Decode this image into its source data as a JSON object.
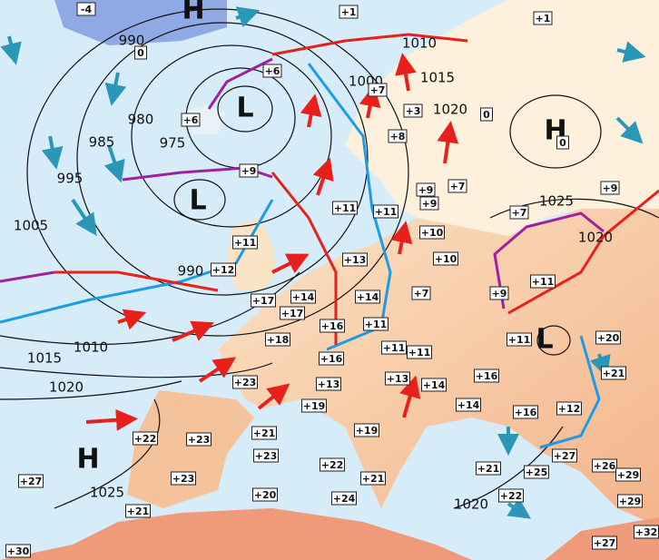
{
  "pressure_centers": [
    "H",
    "L",
    "L",
    "H",
    "L",
    "H"
  ],
  "isobar_labels": [
    "990",
    "1010",
    "1000",
    "1015",
    "1020",
    "980",
    "975",
    "985",
    "995",
    "1005",
    "1025",
    "1020",
    "990",
    "1010",
    "1015",
    "1020",
    "1025",
    "1020"
  ],
  "temperature_labels": [
    "-4",
    "+1",
    "+1",
    "0",
    "+6",
    "+7",
    "+3",
    "0",
    "+6",
    "0",
    "+8",
    "+9",
    "+9",
    "+7",
    "+9",
    "+9",
    "+7",
    "+11",
    "+11",
    "+11",
    "+10",
    "+12",
    "+13",
    "+10",
    "+11",
    "+9",
    "+17",
    "+14",
    "+17",
    "+14",
    "+7",
    "+16",
    "+11",
    "+11",
    "+20",
    "+18",
    "+16",
    "+11",
    "+11",
    "+16",
    "+21",
    "+23",
    "+13",
    "+13",
    "+14",
    "+12",
    "+19",
    "+14",
    "+16",
    "+22",
    "+23",
    "+21",
    "+19",
    "+27",
    "+26",
    "+29",
    "+22",
    "+21",
    "+25",
    "+23",
    "+23",
    "+21",
    "+22",
    "+29",
    "+27",
    "+20",
    "+24",
    "+21",
    "+32",
    "+27",
    "+30"
  ]
}
